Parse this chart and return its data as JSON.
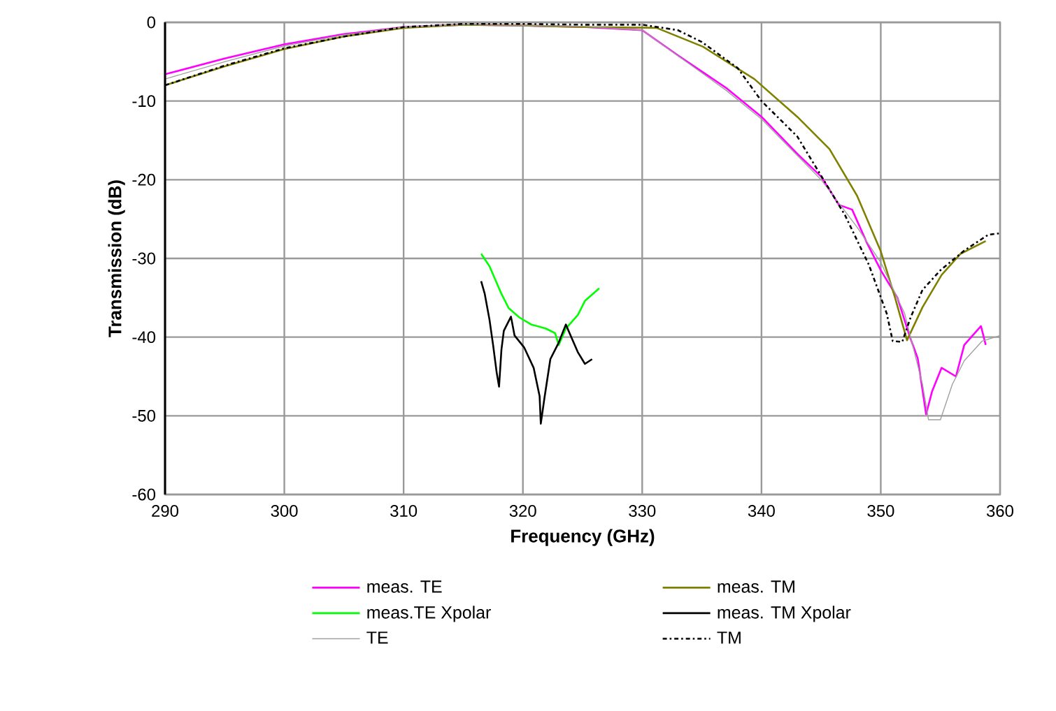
{
  "chart_data": {
    "type": "line",
    "xlabel": "Frequency (GHz)",
    "ylabel": "Transmission (dB)",
    "xlim": [
      290,
      360
    ],
    "ylim": [
      -60,
      0
    ],
    "xticks": [
      290,
      300,
      310,
      320,
      330,
      340,
      350,
      360
    ],
    "yticks": [
      -60,
      -50,
      -40,
      -30,
      -20,
      -10,
      0
    ],
    "grid": true,
    "legend": "bottom",
    "marker": "none",
    "series": [
      {
        "name": "meas. TE",
        "color": "#ff00ff",
        "x": [
          290,
          295,
          300,
          305,
          310,
          315,
          320,
          325.3,
          330,
          333.1,
          337.1,
          340,
          343,
          345,
          346.5,
          347.6,
          348.8,
          350,
          351.4,
          352.4,
          353.1,
          353.8,
          354.3,
          355.1,
          356.3,
          357,
          358.4,
          358.8
        ],
        "values": [
          -6.6,
          -4.6,
          -2.8,
          -1.5,
          -0.6,
          -0.3,
          -0.4,
          -0.6,
          -1,
          -4.3,
          -8.4,
          -12,
          -16.7,
          -19.6,
          -23.2,
          -23.8,
          -27.9,
          -31.5,
          -35,
          -39.8,
          -42.7,
          -49.8,
          -46.9,
          -43.9,
          -45,
          -41,
          -38.6,
          -41
        ]
      },
      {
        "name": "meas. TM",
        "color": "#808000",
        "x": [
          290,
          295,
          300,
          305,
          310,
          315,
          320,
          325.3,
          331.2,
          335.1,
          339.4,
          343,
          345.7,
          348,
          350,
          351.2,
          352.2,
          353.5,
          355.1,
          356.7,
          358.8
        ],
        "values": [
          -8,
          -5.6,
          -3.4,
          -1.8,
          -0.7,
          -0.3,
          -0.4,
          -0.6,
          -0.7,
          -3.1,
          -7.2,
          -12,
          -16.1,
          -22,
          -29.1,
          -35,
          -40.4,
          -36.2,
          -32.1,
          -29.4,
          -27.8
        ]
      },
      {
        "name": "meas.TE Xpolar",
        "color": "#00ff00",
        "x": [
          316.5,
          317.2,
          318.2,
          318.8,
          319.7,
          320.7,
          321.9,
          322.7,
          323,
          323.6,
          324.6,
          325.2,
          326.4
        ],
        "values": [
          -29.4,
          -31,
          -34.5,
          -36.3,
          -37.5,
          -38.4,
          -38.9,
          -39.5,
          -41,
          -38.9,
          -37.2,
          -35.4,
          -33.8
        ]
      },
      {
        "name": "meas. TM Xpolar",
        "color": "#000000",
        "x": [
          316.5,
          316.8,
          317.2,
          317.5,
          317.8,
          318,
          318.2,
          318.4,
          319,
          319.3,
          320.1,
          320.9,
          321.4,
          321.5,
          321.8,
          322.3,
          323,
          323.6,
          324,
          324.6,
          325.2,
          325.8
        ],
        "values": [
          -32.9,
          -34.5,
          -37.8,
          -41,
          -44.5,
          -46.3,
          -41.6,
          -39.2,
          -37.4,
          -39.8,
          -41.3,
          -43.9,
          -47.5,
          -51,
          -47.8,
          -42.8,
          -40.7,
          -38.4,
          -39.8,
          -41.9,
          -43.4,
          -42.8
        ]
      },
      {
        "name": "TE",
        "color": "#a0a0a0",
        "x": [
          290,
          295,
          300,
          305,
          310,
          315,
          320,
          325,
          330,
          337,
          340,
          345,
          348,
          350,
          352,
          353.5,
          354,
          355,
          356,
          357,
          358.5,
          360
        ],
        "values": [
          -7.2,
          -5,
          -3,
          -1.6,
          -0.6,
          -0.3,
          -0.4,
          -0.5,
          -1,
          -8.6,
          -12.3,
          -20,
          -26,
          -30.5,
          -37,
          -46,
          -50.5,
          -50.5,
          -46,
          -43,
          -40.5,
          -39.8
        ]
      },
      {
        "name": "TM",
        "color": "#000000",
        "line_style": "dashed",
        "x": [
          290,
          295,
          300,
          305,
          310,
          315,
          320,
          325,
          330,
          333,
          335,
          338,
          340,
          343,
          345,
          347,
          349,
          350.5,
          351,
          351.8,
          352.5,
          353.5,
          355,
          357,
          359,
          360
        ],
        "values": [
          -8,
          -5.5,
          -3.3,
          -1.8,
          -0.6,
          -0.2,
          -0.2,
          -0.3,
          -0.3,
          -1,
          -2.5,
          -5.8,
          -10,
          -14.5,
          -19.5,
          -24.5,
          -30.8,
          -37,
          -40.5,
          -40.6,
          -37.5,
          -34,
          -31.5,
          -29,
          -27,
          -26.8
        ]
      }
    ]
  }
}
